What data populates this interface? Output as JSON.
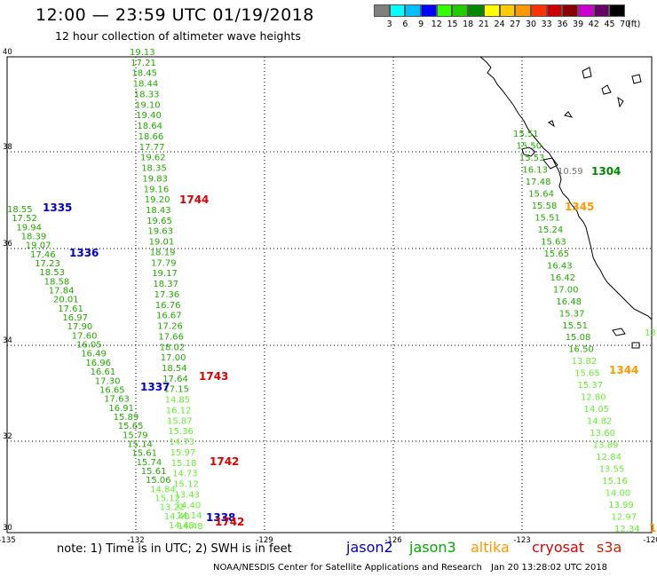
{
  "header": {
    "title": "12:00 — 23:59 UTC 01/19/2018",
    "subtitle": "12 hour collection of altimeter wave heights"
  },
  "legend": {
    "unit_label": "(ft)",
    "bins": [
      {
        "label": "3",
        "color": "#808080"
      },
      {
        "label": "6",
        "color": "#00ffff"
      },
      {
        "label": "9",
        "color": "#00bfff"
      },
      {
        "label": "12",
        "color": "#0000ff"
      },
      {
        "label": "15",
        "color": "#33ff00"
      },
      {
        "label": "18",
        "color": "#22cc00"
      },
      {
        "label": "21",
        "color": "#008800"
      },
      {
        "label": "24",
        "color": "#ffff00"
      },
      {
        "label": "27",
        "color": "#ffcc00"
      },
      {
        "label": "30",
        "color": "#ff9900"
      },
      {
        "label": "33",
        "color": "#ff3300"
      },
      {
        "label": "36",
        "color": "#cc0000"
      },
      {
        "label": "39",
        "color": "#880000"
      },
      {
        "label": "42",
        "color": "#cc00cc"
      },
      {
        "label": "45",
        "color": "#660066"
      },
      {
        "label": "70",
        "color": "#000000"
      }
    ]
  },
  "axes": {
    "lat_labels": [
      "40",
      "38",
      "36",
      "34",
      "32",
      "30"
    ],
    "lon_labels": [
      "-135",
      "-132",
      "-129",
      "-126",
      "-123",
      "-120"
    ]
  },
  "colors": {
    "jason2": "#0000cc",
    "jason3": "#00aa00",
    "altika": "#ff9900",
    "cryosat": "#dd0000",
    "s3a": "#cc2200",
    "light_green": "#66ee33",
    "dark_green": "#22aa00",
    "gray": "#777777"
  },
  "passes": [
    {
      "label": "1744",
      "color": "#dd0000"
    },
    {
      "label": "1335",
      "color": "#0000cc"
    },
    {
      "label": "1336",
      "color": "#0000cc"
    },
    {
      "label": "1743",
      "color": "#dd0000"
    },
    {
      "label": "1337",
      "color": "#0000cc"
    },
    {
      "label": "1742",
      "color": "#dd0000"
    },
    {
      "label": "1338",
      "color": "#0000cc"
    },
    {
      "label": "1742",
      "color": "#dd0000"
    },
    {
      "label": "1304",
      "color": "#008800"
    },
    {
      "label": "1345",
      "color": "#ff9900"
    },
    {
      "label": "1344",
      "color": "#ff9900"
    }
  ],
  "track_a": [
    "19.13",
    "17.21",
    "18.45",
    "18.44",
    "18.33",
    "19.10",
    "19.40",
    "18.64",
    "18.66",
    "17.77",
    "19.62",
    "18.35",
    "19.83",
    "19.16",
    "19.20",
    "18.43",
    "19.65",
    "19.63",
    "19.01",
    "18.19",
    "17.79",
    "19.17",
    "18.37",
    "17.36",
    "16.76",
    "16.67",
    "17.26",
    "17.66",
    "18.02",
    "17.00",
    "18.54",
    "17.64",
    "17.15",
    "14.85",
    "16.12",
    "15.87",
    "15.36",
    "14.73",
    "15.97",
    "15.18",
    "14.73",
    "15.12",
    "13.43",
    "14.40",
    "14.14",
    "14.48"
  ],
  "track_b": [
    "18.55",
    "17.52",
    "19.94",
    "18.39",
    "19.07",
    "17.46",
    "17.23",
    "18.53",
    "18.58",
    "17.84",
    "20.01",
    "17.61",
    "16.97",
    "17.90",
    "17.60",
    "16.05",
    "16.49",
    "16.96",
    "16.61",
    "17.30",
    "16.65",
    "17.63",
    "16.91",
    "15.89",
    "15.65",
    "15.79",
    "15.14",
    "15.61",
    "15.74",
    "15.61",
    "15.06",
    "14.84",
    "15.12",
    "13.22",
    "14.40",
    "14.48"
  ],
  "track_c": [
    "15.51",
    "15.50",
    "15.53",
    "16.13",
    "17.48",
    "15.64",
    "15.58",
    "15.51",
    "15.24",
    "15.63",
    "15.65",
    "16.43",
    "16.42",
    "17.00",
    "16.48",
    "15.37",
    "15.51",
    "15.08",
    "16.50",
    "13.82",
    "15.65",
    "15.37",
    "12.80",
    "14.05",
    "14.82",
    "13.60",
    "13.89",
    "12.84",
    "13.55",
    "15.16",
    "14.00",
    "13.99",
    "12.97",
    "12.34"
  ],
  "misc": [
    {
      "text": "10.59",
      "color": "#777777"
    },
    {
      "text": "13",
      "color": "#66ee33"
    },
    {
      "text": "1",
      "color": "#ff9900"
    }
  ],
  "footer": {
    "note": "note:  1) Time is in UTC;  2) SWH is in feet",
    "sat_labels": [
      "jason2",
      "jason3",
      "altika",
      "cryosat",
      "s3a"
    ],
    "credit": "NOAA/NESDIS Center for Satellite Applications and Research",
    "timestamp": "Jan 20 13:28:02 UTC 2018"
  }
}
